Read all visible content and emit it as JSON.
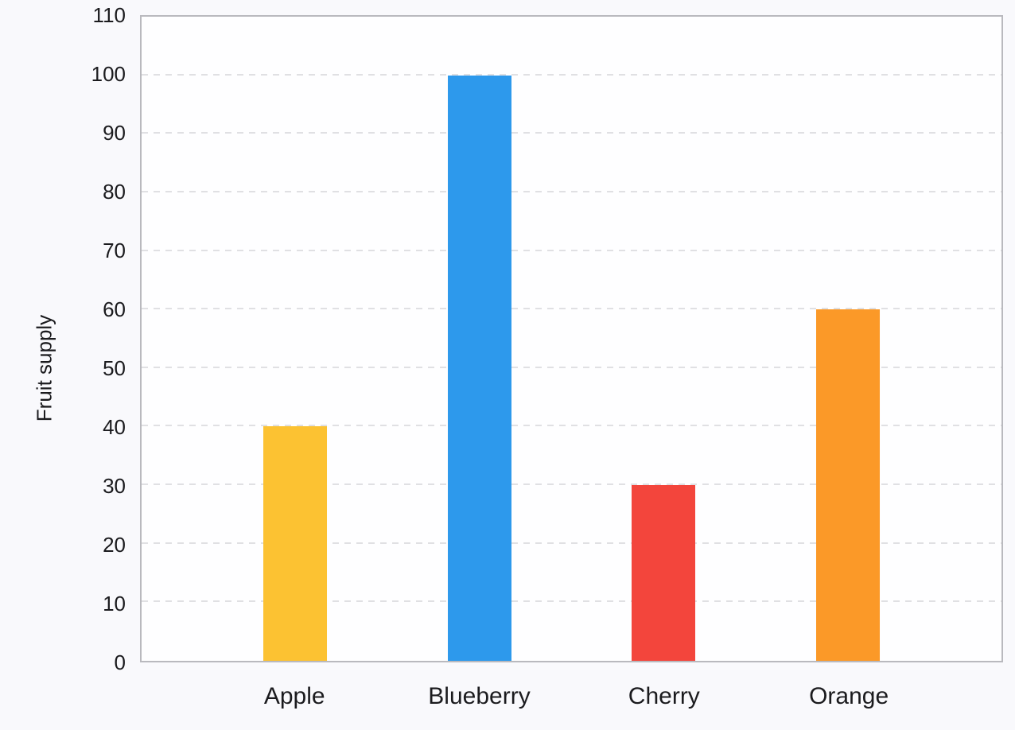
{
  "chart_data": {
    "type": "bar",
    "categories": [
      "Apple",
      "Blueberry",
      "Cherry",
      "Orange"
    ],
    "values": [
      40,
      100,
      30,
      60
    ],
    "bar_colors": [
      "#FCC232",
      "#2D99EC",
      "#F3453C",
      "#FB9928"
    ],
    "title": "",
    "xlabel": "",
    "ylabel": "Fruit supply",
    "ylim": [
      0,
      110
    ],
    "ytick_step": 10,
    "ytick_labels": [
      "0",
      "10",
      "20",
      "30",
      "40",
      "50",
      "60",
      "70",
      "80",
      "90",
      "100",
      "110"
    ],
    "grid": {
      "axis": "y",
      "style": "dashed",
      "color": "#E0E0E3"
    },
    "legend": "none",
    "colors": {
      "page_background": "#F9F9FC",
      "plot_background": "#FEFEFF",
      "plot_border": "#B9B9BE",
      "text": "#1B1B1E"
    }
  }
}
